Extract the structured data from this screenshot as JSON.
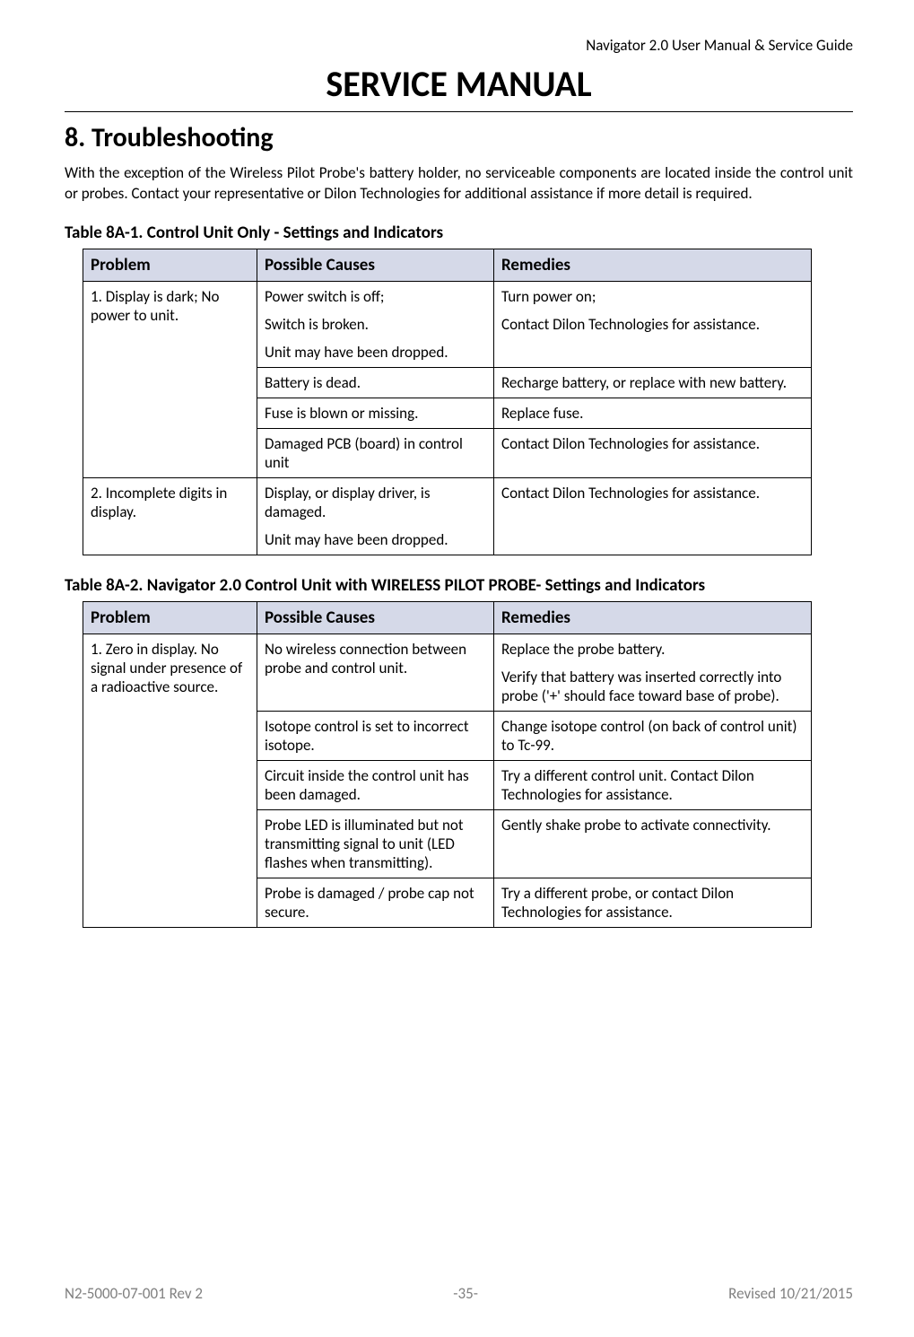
{
  "header": {
    "doc_title": "Navigator 2.0 User Manual & Service Guide"
  },
  "main_title": "SERVICE MANUAL",
  "section": {
    "number_title": "8. Troubleshooting",
    "intro": "With the exception of the Wireless Pilot Probe's battery holder, no serviceable components are located inside the control unit or probes. Contact your representative or Dilon Technologies for additional assistance if more detail is required."
  },
  "table1": {
    "title": "Table 8A-1. Control Unit Only - Settings and Indicators",
    "headers": {
      "col1": "Problem",
      "col2": "Possible Causes",
      "col3": "Remedies"
    },
    "rows": {
      "r1": {
        "problem": "1. Display is dark; No power to unit.",
        "cause1a": "Power switch is off;",
        "cause1b": "Switch is broken.",
        "cause1c": "Unit may have been dropped.",
        "remedy1a": "Turn power on;",
        "remedy1b": "Contact Dilon Technologies for assistance.",
        "cause2": "Battery is dead.",
        "remedy2": "Recharge battery, or replace with new battery.",
        "cause3": "Fuse is blown or missing.",
        "remedy3": "Replace fuse.",
        "cause4": "Damaged PCB (board) in control unit",
        "remedy4": "Contact Dilon Technologies for assistance."
      },
      "r2": {
        "problem": "2. Incomplete digits in display.",
        "cause1a": "Display, or display driver, is damaged.",
        "cause1b": "Unit may have been dropped.",
        "remedy1": "Contact Dilon Technologies for assistance."
      }
    }
  },
  "table2": {
    "title": "Table 8A-2. Navigator 2.0 Control Unit with WIRELESS PILOT PROBE- Settings and Indicators",
    "headers": {
      "col1": "Problem",
      "col2": "Possible Causes",
      "col3": "Remedies"
    },
    "rows": {
      "r1": {
        "problem": "1. Zero in display. No signal under presence of a radioactive source.",
        "cause1": "No wireless connection between probe and control unit.",
        "remedy1a": "Replace the probe battery.",
        "remedy1b": "Verify that battery was inserted correctly into probe ('+' should face toward base of probe).",
        "cause2": "Isotope control is set to incorrect isotope.",
        "remedy2": "Change isotope control (on back of control unit) to Tc-99.",
        "cause3": "Circuit inside the control unit has been damaged.",
        "remedy3": "Try a different control unit. Contact Dilon Technologies for assistance.",
        "cause4": "Probe LED is illuminated but not transmitting signal to unit (LED flashes when transmitting).",
        "remedy4": "Gently shake probe to activate connectivity.",
        "cause5": "Probe is damaged / probe cap not secure.",
        "remedy5": "Try a different probe, or contact Dilon Technologies for assistance."
      }
    }
  },
  "footer": {
    "left": "N2-5000-07-001 Rev 2",
    "center": "-35-",
    "right": "Revised 10/21/2015"
  }
}
